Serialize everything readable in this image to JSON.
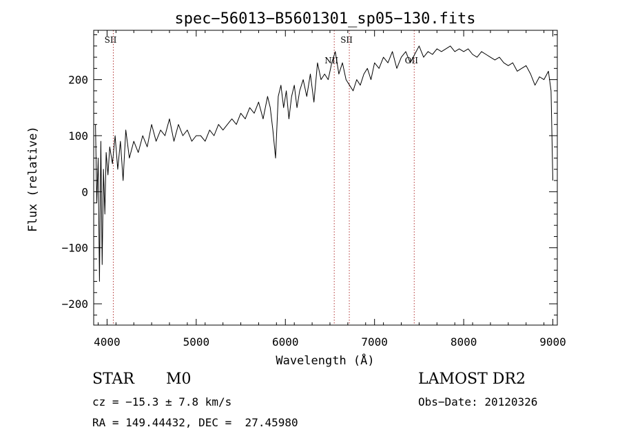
{
  "chart_data": {
    "type": "line",
    "title": "spec−56013−B5601301_sp05−130.fits",
    "xlabel": "Wavelength (Å)",
    "ylabel": "Flux (relative)",
    "xlim": [
      3850,
      9050
    ],
    "ylim": [
      -238,
      288
    ],
    "x_ticks": [
      4000,
      5000,
      6000,
      7000,
      8000,
      9000
    ],
    "y_ticks": [
      -200,
      -100,
      0,
      100,
      200
    ],
    "y_tick_labels": [
      "−200",
      "−100",
      "0",
      "100",
      "200"
    ],
    "grid": false,
    "line_color": "#000000",
    "marker_color": "#b03030",
    "series": [
      {
        "x": [
          3870,
          3885,
          3900,
          3915,
          3930,
          3945,
          3960,
          3975,
          3990,
          4010,
          4030,
          4060,
          4090,
          4120,
          4150,
          4180,
          4210,
          4250,
          4300,
          4350,
          4400,
          4450,
          4500,
          4550,
          4600,
          4650,
          4700,
          4750,
          4800,
          4850,
          4900,
          4950,
          5000,
          5050,
          5100,
          5150,
          5200,
          5250,
          5300,
          5350,
          5400,
          5450,
          5500,
          5550,
          5600,
          5650,
          5700,
          5750,
          5800,
          5830,
          5860,
          5890,
          5920,
          5950,
          5980,
          6010,
          6040,
          6070,
          6100,
          6130,
          6160,
          6200,
          6240,
          6280,
          6320,
          6360,
          6400,
          6440,
          6480,
          6520,
          6560,
          6600,
          6640,
          6680,
          6720,
          6760,
          6800,
          6840,
          6880,
          6920,
          6960,
          7000,
          7050,
          7100,
          7150,
          7200,
          7250,
          7300,
          7350,
          7400,
          7450,
          7500,
          7550,
          7600,
          7650,
          7700,
          7750,
          7800,
          7850,
          7900,
          7950,
          8000,
          8050,
          8100,
          8150,
          8200,
          8250,
          8300,
          8350,
          8400,
          8450,
          8500,
          8550,
          8600,
          8650,
          8700,
          8750,
          8800,
          8850,
          8900,
          8950,
          8980,
          9000
        ],
        "y": [
          120,
          -20,
          60,
          -160,
          90,
          -130,
          40,
          -40,
          70,
          30,
          80,
          50,
          100,
          40,
          90,
          20,
          110,
          60,
          90,
          70,
          100,
          80,
          120,
          90,
          110,
          100,
          130,
          90,
          120,
          100,
          110,
          90,
          100,
          100,
          90,
          110,
          100,
          120,
          110,
          120,
          130,
          120,
          140,
          130,
          150,
          140,
          160,
          130,
          170,
          150,
          110,
          60,
          170,
          190,
          150,
          180,
          130,
          170,
          190,
          150,
          180,
          200,
          170,
          210,
          160,
          230,
          200,
          210,
          200,
          230,
          250,
          210,
          230,
          200,
          190,
          180,
          200,
          190,
          210,
          220,
          200,
          230,
          220,
          240,
          230,
          250,
          220,
          240,
          250,
          230,
          245,
          260,
          240,
          250,
          245,
          255,
          250,
          255,
          260,
          250,
          255,
          250,
          255,
          245,
          240,
          250,
          245,
          240,
          235,
          240,
          230,
          225,
          230,
          215,
          220,
          225,
          210,
          190,
          205,
          200,
          215,
          180,
          20
        ]
      }
    ],
    "lines": [
      {
        "x": 4070,
        "label": "SII"
      },
      {
        "x": 6548,
        "label": "NII"
      },
      {
        "x": 6717,
        "label": "SII"
      },
      {
        "x": 7445,
        "label": "OII"
      }
    ]
  },
  "info": {
    "class_label": "STAR",
    "subclass_label": "M0",
    "survey_label": "LAMOST DR2",
    "cz_text": "cz = −15.3 ± 7.8 km/s",
    "obs_date_text": "Obs−Date: 20120326",
    "coords_text": "RA = 149.44432, DEC =  27.45980"
  }
}
